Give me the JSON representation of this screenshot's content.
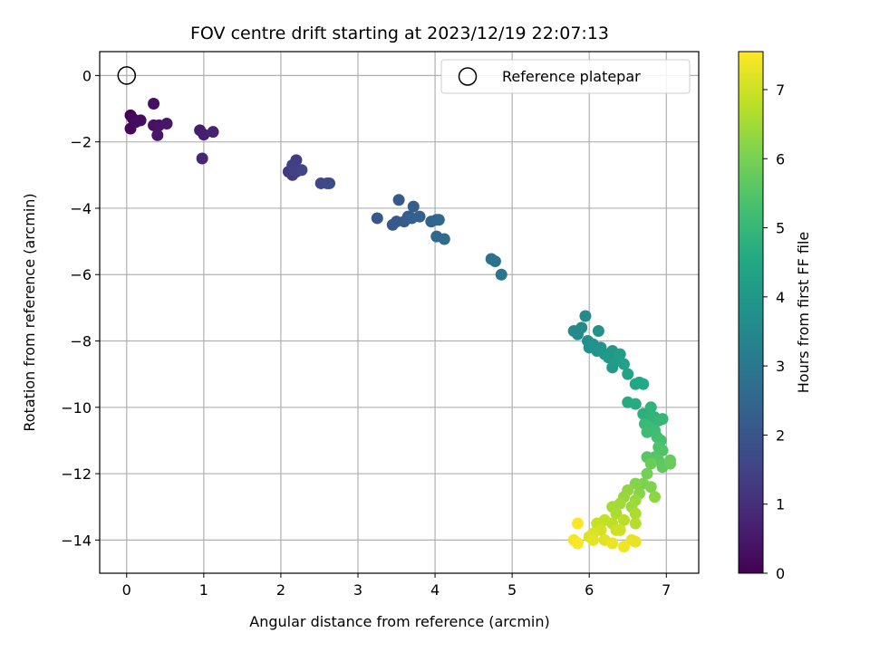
{
  "chart_data": {
    "type": "scatter",
    "title": "FOV centre drift starting at 2023/12/19 22:07:13",
    "xlabel": "Angular distance from reference (arcmin)",
    "ylabel": "Rotation from reference (arcmin)",
    "xlim": [
      -0.35,
      7.42
    ],
    "ylim": [
      -15.0,
      0.72
    ],
    "xticks": [
      0,
      1,
      2,
      3,
      4,
      5,
      6,
      7
    ],
    "yticks": [
      0,
      -2,
      -4,
      -6,
      -8,
      -10,
      -12,
      -14
    ],
    "grid": true,
    "legend": {
      "placement": "top-right",
      "entries": [
        "Reference platepar"
      ]
    },
    "reference_point": {
      "x": 0,
      "y": 0,
      "label": "Reference platepar"
    },
    "colorbar": {
      "label": "Hours from first FF file",
      "colormap": "viridis",
      "min": 0,
      "max": 7.55,
      "ticks": [
        0,
        1,
        2,
        3,
        4,
        5,
        6,
        7
      ]
    },
    "points": [
      {
        "x": 0.05,
        "y": -1.2,
        "hours": 0.05
      },
      {
        "x": 0.08,
        "y": -1.3,
        "hours": 0.1
      },
      {
        "x": 0.05,
        "y": -1.6,
        "hours": 0.15
      },
      {
        "x": 0.12,
        "y": -1.4,
        "hours": 0.2
      },
      {
        "x": 0.18,
        "y": -1.35,
        "hours": 0.25
      },
      {
        "x": 0.35,
        "y": -0.85,
        "hours": 0.3
      },
      {
        "x": 0.35,
        "y": -1.5,
        "hours": 0.35
      },
      {
        "x": 0.42,
        "y": -1.5,
        "hours": 0.4
      },
      {
        "x": 0.4,
        "y": -1.8,
        "hours": 0.45
      },
      {
        "x": 0.52,
        "y": -1.45,
        "hours": 0.5
      },
      {
        "x": 0.95,
        "y": -1.65,
        "hours": 0.6
      },
      {
        "x": 1.0,
        "y": -1.78,
        "hours": 0.65
      },
      {
        "x": 1.12,
        "y": -1.7,
        "hours": 0.7
      },
      {
        "x": 0.98,
        "y": -2.5,
        "hours": 0.8
      },
      {
        "x": 2.1,
        "y": -2.9,
        "hours": 1.25
      },
      {
        "x": 2.15,
        "y": -3.0,
        "hours": 1.3
      },
      {
        "x": 2.2,
        "y": -2.55,
        "hours": 1.35
      },
      {
        "x": 2.15,
        "y": -2.7,
        "hours": 1.4
      },
      {
        "x": 2.2,
        "y": -2.9,
        "hours": 1.45
      },
      {
        "x": 2.27,
        "y": -2.85,
        "hours": 1.5
      },
      {
        "x": 2.52,
        "y": -3.25,
        "hours": 1.6
      },
      {
        "x": 2.6,
        "y": -3.25,
        "hours": 1.65
      },
      {
        "x": 2.63,
        "y": -3.25,
        "hours": 1.7
      },
      {
        "x": 3.25,
        "y": -4.3,
        "hours": 2.0
      },
      {
        "x": 3.45,
        "y": -4.5,
        "hours": 2.05
      },
      {
        "x": 3.5,
        "y": -4.4,
        "hours": 2.1
      },
      {
        "x": 3.53,
        "y": -3.75,
        "hours": 2.1
      },
      {
        "x": 3.6,
        "y": -4.4,
        "hours": 2.15
      },
      {
        "x": 3.65,
        "y": -4.25,
        "hours": 2.2
      },
      {
        "x": 3.72,
        "y": -3.95,
        "hours": 2.25
      },
      {
        "x": 3.7,
        "y": -4.3,
        "hours": 2.3
      },
      {
        "x": 3.8,
        "y": -4.25,
        "hours": 2.35
      },
      {
        "x": 3.95,
        "y": -4.4,
        "hours": 2.4
      },
      {
        "x": 4.02,
        "y": -4.35,
        "hours": 2.45
      },
      {
        "x": 4.05,
        "y": -4.35,
        "hours": 2.5
      },
      {
        "x": 4.02,
        "y": -4.85,
        "hours": 2.55
      },
      {
        "x": 4.12,
        "y": -4.93,
        "hours": 2.6
      },
      {
        "x": 4.73,
        "y": -5.53,
        "hours": 2.85
      },
      {
        "x": 4.78,
        "y": -5.6,
        "hours": 2.9
      },
      {
        "x": 4.86,
        "y": -6.0,
        "hours": 2.95
      },
      {
        "x": 5.8,
        "y": -7.7,
        "hours": 3.5
      },
      {
        "x": 5.85,
        "y": -7.8,
        "hours": 3.55
      },
      {
        "x": 5.9,
        "y": -7.6,
        "hours": 3.6
      },
      {
        "x": 5.95,
        "y": -7.25,
        "hours": 3.6
      },
      {
        "x": 5.98,
        "y": -8.0,
        "hours": 3.7
      },
      {
        "x": 6.0,
        "y": -8.2,
        "hours": 3.75
      },
      {
        "x": 6.05,
        "y": -8.1,
        "hours": 3.8
      },
      {
        "x": 6.1,
        "y": -8.3,
        "hours": 3.85
      },
      {
        "x": 6.12,
        "y": -7.7,
        "hours": 3.85
      },
      {
        "x": 6.15,
        "y": -8.2,
        "hours": 3.9
      },
      {
        "x": 6.2,
        "y": -8.4,
        "hours": 3.95
      },
      {
        "x": 6.25,
        "y": -8.5,
        "hours": 4.0
      },
      {
        "x": 6.3,
        "y": -8.3,
        "hours": 4.05
      },
      {
        "x": 6.3,
        "y": -8.8,
        "hours": 4.1
      },
      {
        "x": 6.35,
        "y": -8.6,
        "hours": 4.15
      },
      {
        "x": 6.4,
        "y": -8.4,
        "hours": 4.2
      },
      {
        "x": 6.45,
        "y": -8.7,
        "hours": 4.3
      },
      {
        "x": 6.5,
        "y": -9.0,
        "hours": 4.35
      },
      {
        "x": 6.6,
        "y": -9.3,
        "hours": 4.45
      },
      {
        "x": 6.65,
        "y": -9.25,
        "hours": 4.5
      },
      {
        "x": 6.7,
        "y": -9.3,
        "hours": 4.55
      },
      {
        "x": 6.5,
        "y": -9.85,
        "hours": 4.6
      },
      {
        "x": 6.6,
        "y": -9.9,
        "hours": 4.65
      },
      {
        "x": 6.7,
        "y": -10.2,
        "hours": 4.75
      },
      {
        "x": 6.75,
        "y": -10.3,
        "hours": 4.8
      },
      {
        "x": 6.8,
        "y": -10.0,
        "hours": 4.85
      },
      {
        "x": 6.85,
        "y": -10.3,
        "hours": 4.9
      },
      {
        "x": 6.9,
        "y": -10.4,
        "hours": 4.95
      },
      {
        "x": 6.95,
        "y": -10.35,
        "hours": 5.0
      },
      {
        "x": 6.72,
        "y": -10.5,
        "hours": 5.05
      },
      {
        "x": 6.78,
        "y": -10.6,
        "hours": 5.1
      },
      {
        "x": 6.85,
        "y": -10.7,
        "hours": 5.15
      },
      {
        "x": 6.75,
        "y": -10.75,
        "hours": 5.2
      },
      {
        "x": 6.88,
        "y": -10.9,
        "hours": 5.25
      },
      {
        "x": 6.93,
        "y": -11.0,
        "hours": 5.3
      },
      {
        "x": 6.9,
        "y": -11.2,
        "hours": 5.4
      },
      {
        "x": 6.95,
        "y": -11.3,
        "hours": 5.45
      },
      {
        "x": 6.85,
        "y": -11.5,
        "hours": 5.5
      },
      {
        "x": 6.75,
        "y": -11.5,
        "hours": 5.55
      },
      {
        "x": 6.9,
        "y": -11.6,
        "hours": 5.6
      },
      {
        "x": 6.95,
        "y": -11.8,
        "hours": 5.65
      },
      {
        "x": 7.05,
        "y": -11.6,
        "hours": 5.75
      },
      {
        "x": 7.05,
        "y": -11.7,
        "hours": 5.8
      },
      {
        "x": 6.8,
        "y": -11.7,
        "hours": 5.85
      },
      {
        "x": 6.75,
        "y": -12.0,
        "hours": 5.95
      },
      {
        "x": 6.7,
        "y": -12.3,
        "hours": 6.05
      },
      {
        "x": 6.8,
        "y": -12.4,
        "hours": 6.1
      },
      {
        "x": 6.6,
        "y": -12.3,
        "hours": 6.15
      },
      {
        "x": 6.65,
        "y": -12.6,
        "hours": 6.2
      },
      {
        "x": 6.85,
        "y": -12.7,
        "hours": 6.25
      },
      {
        "x": 6.5,
        "y": -12.5,
        "hours": 6.3
      },
      {
        "x": 6.45,
        "y": -12.7,
        "hours": 6.35
      },
      {
        "x": 6.6,
        "y": -12.8,
        "hours": 6.4
      },
      {
        "x": 6.55,
        "y": -13.0,
        "hours": 6.45
      },
      {
        "x": 6.4,
        "y": -12.9,
        "hours": 6.5
      },
      {
        "x": 6.3,
        "y": -13.0,
        "hours": 6.55
      },
      {
        "x": 6.35,
        "y": -13.2,
        "hours": 6.6
      },
      {
        "x": 6.6,
        "y": -13.2,
        "hours": 6.6
      },
      {
        "x": 6.6,
        "y": -13.5,
        "hours": 6.7
      },
      {
        "x": 6.45,
        "y": -13.4,
        "hours": 6.75
      },
      {
        "x": 6.3,
        "y": -13.5,
        "hours": 6.8
      },
      {
        "x": 6.2,
        "y": -13.4,
        "hours": 6.85
      },
      {
        "x": 6.1,
        "y": -13.5,
        "hours": 6.9
      },
      {
        "x": 6.35,
        "y": -13.7,
        "hours": 6.95
      },
      {
        "x": 6.4,
        "y": -13.7,
        "hours": 7.0
      },
      {
        "x": 6.15,
        "y": -13.7,
        "hours": 7.05
      },
      {
        "x": 6.05,
        "y": -13.8,
        "hours": 7.1
      },
      {
        "x": 6.0,
        "y": -13.9,
        "hours": 7.15
      },
      {
        "x": 6.2,
        "y": -14.0,
        "hours": 7.2
      },
      {
        "x": 6.05,
        "y": -14.0,
        "hours": 7.25
      },
      {
        "x": 6.55,
        "y": -14.0,
        "hours": 7.3
      },
      {
        "x": 6.6,
        "y": -14.05,
        "hours": 7.3
      },
      {
        "x": 6.3,
        "y": -14.1,
        "hours": 7.35
      },
      {
        "x": 6.45,
        "y": -14.2,
        "hours": 7.4
      },
      {
        "x": 5.8,
        "y": -14.0,
        "hours": 7.45
      },
      {
        "x": 5.85,
        "y": -14.1,
        "hours": 7.5
      },
      {
        "x": 5.85,
        "y": -13.5,
        "hours": 7.55
      }
    ]
  }
}
